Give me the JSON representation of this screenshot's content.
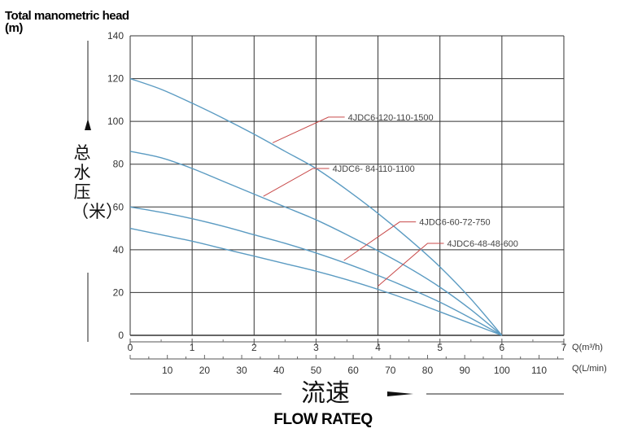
{
  "chart_data": {
    "type": "line",
    "ylabel_en": "Total manometric head (m)",
    "ylabel_cn": "总水压（米）",
    "xlabel_cn": "流速",
    "xlabel_en": "FLOW RATEQ",
    "y_ticks": [
      "0",
      "20",
      "40",
      "60",
      "80",
      "100",
      "120",
      "140"
    ],
    "ylim": [
      0,
      140
    ],
    "x_ticks_m3h": [
      "0",
      "1",
      "2",
      "3",
      "4",
      "5",
      "6",
      "7"
    ],
    "x_unit_m3h": "Q(m³/h)",
    "xlim_m3h": [
      0,
      7
    ],
    "x_ticks_lmin": [
      "10",
      "20",
      "30",
      "40",
      "50",
      "60",
      "70",
      "80",
      "90",
      "100",
      "110"
    ],
    "x_unit_lmin": "Q(L/min)",
    "grid": true,
    "series": [
      {
        "name": "4JDC6-120-110-1500",
        "x": [
          0,
          0.5,
          1,
          1.5,
          2,
          2.5,
          3,
          3.5,
          4,
          4.5,
          5,
          5.5,
          6
        ],
        "y": [
          120,
          115,
          108.5,
          101.5,
          94,
          86,
          78,
          68,
          57,
          45,
          32,
          17,
          0
        ]
      },
      {
        "name": "4JDC6- 84-110-1100",
        "x": [
          0,
          0.5,
          1,
          1.5,
          2,
          2.5,
          3,
          3.5,
          4,
          4.5,
          5,
          5.5,
          6
        ],
        "y": [
          86,
          83,
          78,
          72,
          66,
          60,
          54,
          47,
          39.5,
          31.5,
          22.5,
          12,
          0
        ]
      },
      {
        "name": "4JDC6-60-72-750",
        "x": [
          0,
          0.5,
          1,
          1.5,
          2,
          2.5,
          3,
          3.5,
          4,
          4.5,
          5,
          5.5,
          6
        ],
        "y": [
          60,
          57.5,
          54.5,
          51,
          47,
          43,
          38.5,
          33.5,
          28,
          22,
          15.5,
          8,
          0
        ]
      },
      {
        "name": "4JDC6-48-48-600",
        "x": [
          0,
          0.5,
          1,
          1.5,
          2,
          2.5,
          3,
          3.5,
          4,
          4.5,
          5,
          5.5,
          6
        ],
        "y": [
          50,
          47,
          44,
          40.5,
          37,
          33.5,
          30,
          26,
          21.5,
          16.5,
          11,
          5.5,
          0
        ]
      }
    ],
    "annotations": [
      {
        "series": 0,
        "label": "4JDC6-120-110-1500",
        "point": [
          2.3,
          90
        ],
        "text_at": [
          3.2,
          102
        ]
      },
      {
        "series": 1,
        "label": "4JDC6- 84-110-1100",
        "point": [
          2.15,
          65
        ],
        "text_at": [
          2.95,
          78
        ]
      },
      {
        "series": 2,
        "label": "4JDC6-60-72-750",
        "point": [
          3.45,
          35
        ],
        "text_at": [
          4.35,
          53
        ]
      },
      {
        "series": 3,
        "label": "4JDC6-48-48-600",
        "point": [
          4,
          23
        ],
        "text_at": [
          4.8,
          43
        ]
      }
    ],
    "line_color": "#5b9bc2",
    "leader_color": "#c84a4a",
    "grid_color": "#333333"
  }
}
